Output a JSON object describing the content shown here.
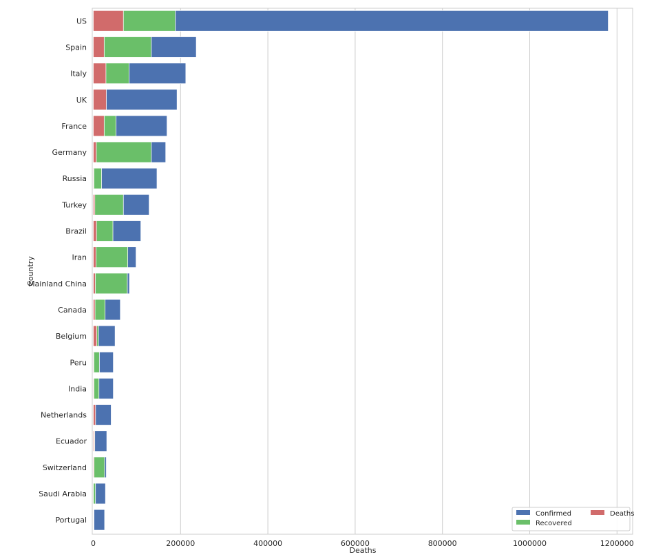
{
  "chart_data": {
    "type": "bar",
    "orientation": "horizontal",
    "stacked_overlay": true,
    "xlabel": "Deaths",
    "ylabel": "Country",
    "xlim": [
      0,
      1240000
    ],
    "xticks": [
      0,
      200000,
      400000,
      600000,
      800000,
      1000000,
      1200000
    ],
    "xtick_labels": [
      "0",
      "200000",
      "400000",
      "600000",
      "800000",
      "1000000",
      "1200000"
    ],
    "grid": "vertical",
    "legend_position": "bottom-right",
    "categories": [
      "US",
      "Spain",
      "Italy",
      "UK",
      "France",
      "Germany",
      "Russia",
      "Turkey",
      "Brazil",
      "Iran",
      "Mainland China",
      "Canada",
      "Belgium",
      "Peru",
      "India",
      "Netherlands",
      "Ecuador",
      "Switzerland",
      "Saudi Arabia",
      "Portugal"
    ],
    "series": [
      {
        "name": "Confirmed",
        "color": "#4c72b0",
        "values": [
          1180000,
          236000,
          212000,
          192000,
          169000,
          166000,
          146000,
          128000,
          109000,
          98000,
          83000,
          62000,
          50000,
          46000,
          46000,
          41000,
          31000,
          30000,
          28000,
          26000
        ]
      },
      {
        "name": "Recovered",
        "color": "#6abf69",
        "values": [
          188000,
          133000,
          82000,
          900,
          52000,
          133000,
          19000,
          69000,
          45000,
          79000,
          78000,
          27000,
          12000,
          14000,
          13000,
          250,
          3400,
          26000,
          5000,
          1600
        ]
      },
      {
        "name": "Deaths",
        "color": "#d16b6b",
        "values": [
          69000,
          25000,
          29000,
          30000,
          25000,
          7000,
          1400,
          3500,
          7400,
          6300,
          4600,
          4000,
          8000,
          1300,
          1500,
          5200,
          2300,
          1800,
          180,
          1000
        ]
      }
    ],
    "legend": {
      "columns": 2,
      "entries": [
        "Confirmed",
        "Recovered",
        "Deaths"
      ]
    }
  }
}
